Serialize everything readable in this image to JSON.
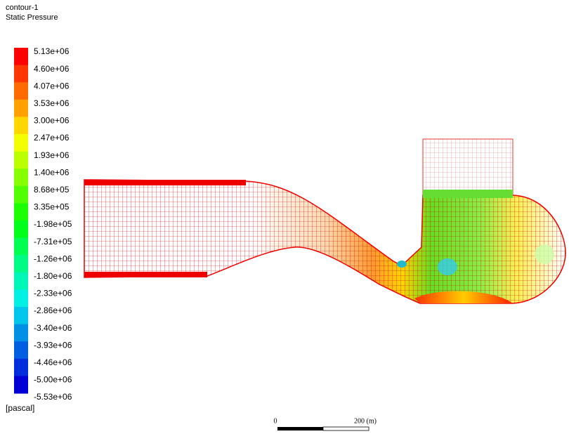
{
  "header": {
    "title": "contour-1",
    "subtitle": "Static Pressure"
  },
  "legend": {
    "levels": [
      "5.13e+06",
      "4.60e+06",
      "4.07e+06",
      "3.53e+06",
      "3.00e+06",
      "2.47e+06",
      "1.93e+06",
      "1.40e+06",
      "8.68e+05",
      "3.35e+05",
      "-1.98e+05",
      "-7.31e+05",
      "-1.26e+06",
      "-1.80e+06",
      "-2.33e+06",
      "-2.86e+06",
      "-3.40e+06",
      "-3.93e+06",
      "-4.46e+06",
      "-5.00e+06",
      "-5.53e+06"
    ],
    "unit": "[pascal]"
  },
  "scale_bar": {
    "start": "0",
    "end": "200 (m)"
  }
}
